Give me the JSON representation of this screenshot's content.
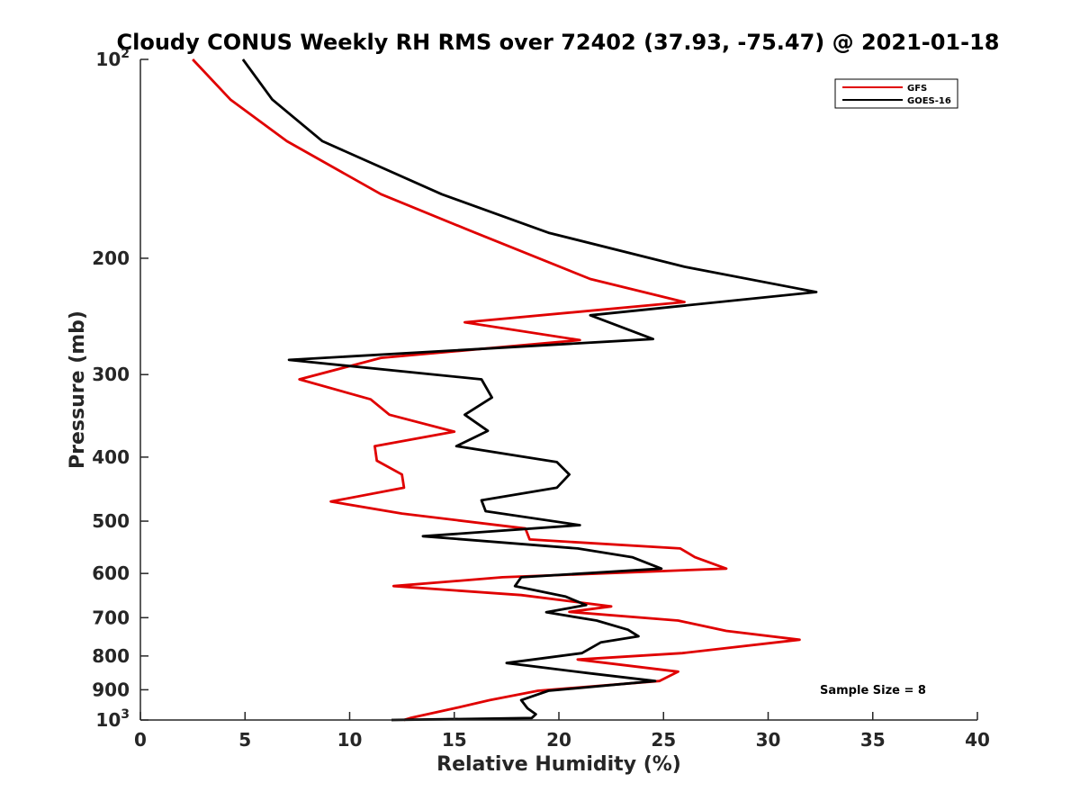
{
  "chart_data": {
    "type": "line",
    "title": "Cloudy CONUS Weekly RH RMS over 72402 (37.93, -75.47) @ 2021-01-18",
    "xlabel": "Relative Humidity (%)",
    "ylabel": "Pressure (mb)",
    "xlim": [
      0,
      40
    ],
    "ylim": [
      100,
      1000
    ],
    "y_scale": "log",
    "y_reversed": true,
    "grid": false,
    "x_ticks": [
      {
        "value": 0,
        "label": "0"
      },
      {
        "value": 5,
        "label": "5"
      },
      {
        "value": 10,
        "label": "10"
      },
      {
        "value": 15,
        "label": "15"
      },
      {
        "value": 20,
        "label": "20"
      },
      {
        "value": 25,
        "label": "25"
      },
      {
        "value": 30,
        "label": "30"
      },
      {
        "value": 35,
        "label": "35"
      },
      {
        "value": 40,
        "label": "40"
      }
    ],
    "y_ticks": [
      {
        "value": 100,
        "label": "10",
        "sup": "2"
      },
      {
        "value": 200,
        "label": "200"
      },
      {
        "value": 300,
        "label": "300"
      },
      {
        "value": 400,
        "label": "400"
      },
      {
        "value": 500,
        "label": "500"
      },
      {
        "value": 600,
        "label": "600"
      },
      {
        "value": 700,
        "label": "700"
      },
      {
        "value": 800,
        "label": "800"
      },
      {
        "value": 900,
        "label": "900"
      },
      {
        "value": 1000,
        "label": "10",
        "sup": "3"
      }
    ],
    "legend": {
      "position": "top-right"
    },
    "annotation": "Sample Size = 8",
    "series": [
      {
        "name": "GFS",
        "color": "#e00000",
        "points": [
          [
            2.5,
            100
          ],
          [
            4.3,
            115
          ],
          [
            7.0,
            133
          ],
          [
            11.5,
            160
          ],
          [
            16.0,
            183
          ],
          [
            21.5,
            215
          ],
          [
            26.0,
            233
          ],
          [
            15.5,
            250
          ],
          [
            21.0,
            266
          ],
          [
            11.5,
            283
          ],
          [
            7.6,
            305
          ],
          [
            11.0,
            327
          ],
          [
            11.9,
            345
          ],
          [
            15.0,
            366
          ],
          [
            11.2,
            385
          ],
          [
            11.3,
            405
          ],
          [
            12.5,
            425
          ],
          [
            12.6,
            445
          ],
          [
            9.1,
            467
          ],
          [
            12.5,
            487
          ],
          [
            18.4,
            513
          ],
          [
            18.6,
            533
          ],
          [
            25.8,
            550
          ],
          [
            26.5,
            567
          ],
          [
            28.0,
            590
          ],
          [
            17.3,
            608
          ],
          [
            12.1,
            627
          ],
          [
            18.2,
            647
          ],
          [
            22.5,
            673
          ],
          [
            20.5,
            686
          ],
          [
            25.7,
            707
          ],
          [
            28.0,
            733
          ],
          [
            31.5,
            756
          ],
          [
            25.9,
            792
          ],
          [
            20.9,
            810
          ],
          [
            25.7,
            845
          ],
          [
            24.8,
            873
          ],
          [
            19.0,
            903
          ],
          [
            16.7,
            933
          ],
          [
            15.0,
            960
          ],
          [
            12.9,
            993
          ],
          [
            12.6,
            1000
          ]
        ]
      },
      {
        "name": "GOES-16",
        "color": "#000000",
        "points": [
          [
            4.9,
            100
          ],
          [
            6.3,
            115
          ],
          [
            8.7,
            133
          ],
          [
            14.4,
            160
          ],
          [
            19.5,
            183
          ],
          [
            26.0,
            206
          ],
          [
            32.3,
            225
          ],
          [
            21.5,
            244
          ],
          [
            24.5,
            265
          ],
          [
            7.1,
            285
          ],
          [
            16.3,
            305
          ],
          [
            16.8,
            325
          ],
          [
            15.5,
            345
          ],
          [
            16.6,
            365
          ],
          [
            15.1,
            385
          ],
          [
            19.9,
            407
          ],
          [
            20.5,
            425
          ],
          [
            19.9,
            445
          ],
          [
            16.3,
            465
          ],
          [
            16.5,
            483
          ],
          [
            21.0,
            507
          ],
          [
            13.5,
            527
          ],
          [
            20.9,
            550
          ],
          [
            23.5,
            567
          ],
          [
            24.9,
            590
          ],
          [
            18.2,
            608
          ],
          [
            17.9,
            627
          ],
          [
            20.3,
            650
          ],
          [
            21.3,
            670
          ],
          [
            19.4,
            687
          ],
          [
            21.8,
            707
          ],
          [
            23.3,
            730
          ],
          [
            23.8,
            747
          ],
          [
            22.0,
            763
          ],
          [
            21.1,
            792
          ],
          [
            17.5,
            820
          ],
          [
            21.5,
            850
          ],
          [
            24.6,
            873
          ],
          [
            19.5,
            903
          ],
          [
            18.2,
            933
          ],
          [
            18.5,
            960
          ],
          [
            18.9,
            980
          ],
          [
            18.7,
            993
          ],
          [
            12.0,
            1000
          ]
        ]
      }
    ]
  }
}
